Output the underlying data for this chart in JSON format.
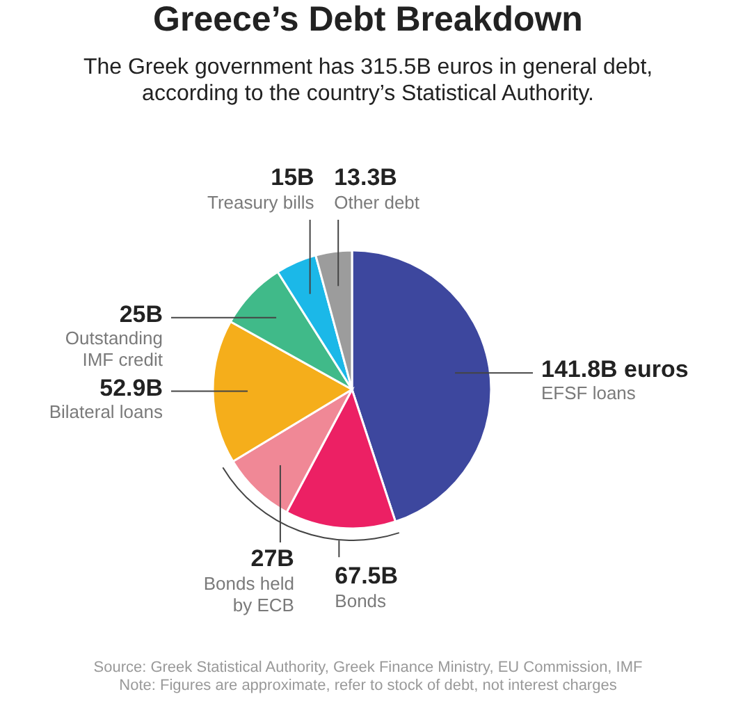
{
  "chart_data": {
    "type": "pie",
    "title": "Greece’s Debt Breakdown",
    "subtitle": "The Greek government has 315.5B euros in general debt,\naccording to the country’s Statistical Authority.",
    "categories": [
      "EFSF loans",
      null,
      "Bonds held\nby ECB",
      "Bilateral loans",
      "Outstanding\nIMF credit",
      "Treasury bills",
      "Other debt"
    ],
    "values": [
      141.8,
      40.5,
      27,
      52.9,
      25,
      15,
      13.3
    ],
    "value_labels": [
      "141.8B euros",
      null,
      "27B",
      "52.9B",
      "25B",
      "15B",
      "13.3B"
    ],
    "colors": [
      "#3d479e",
      "#ec2064",
      "#f08896",
      "#f5ae1b",
      "#40ba89",
      "#1bb8e8",
      "#9c9c9c"
    ],
    "annotations": [
      "67.5B",
      "Bonds",
      "Source: Greek Statistical Authority, Greek Finance Ministry, EU Commission, IMF",
      "Note: Figures are approximate, refer to stock of debt, not interest charges"
    ]
  }
}
